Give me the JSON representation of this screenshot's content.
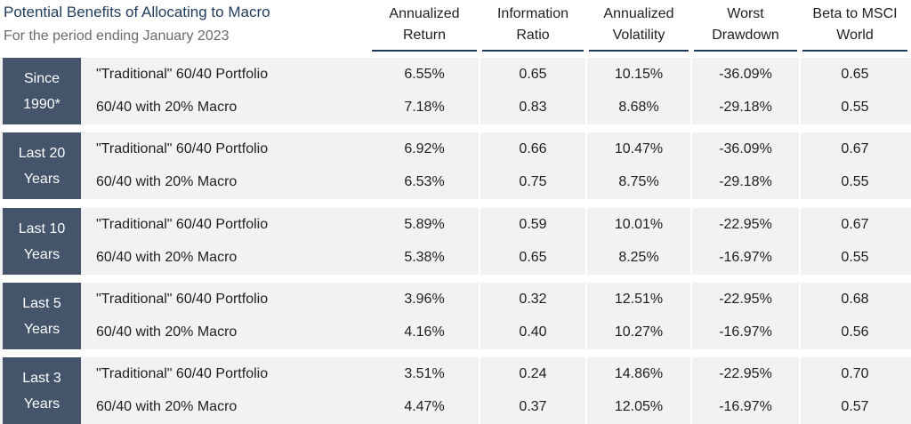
{
  "title": "Potential Benefits of Allocating to Macro",
  "subtitle": "For the period ending January 2023",
  "columns": [
    "Annualized\nReturn",
    "Information\nRatio",
    "Annualized\nVolatility",
    "Worst\nDrawdown",
    "Beta to MSCI\nWorld"
  ],
  "groups": [
    {
      "label": "Since\n1990*",
      "rows": [
        {
          "portfolio": "\"Traditional\" 60/40 Portfolio",
          "values": [
            "6.55%",
            "0.65",
            "10.15%",
            "-36.09%",
            "0.65"
          ]
        },
        {
          "portfolio": "60/40 with 20% Macro",
          "values": [
            "7.18%",
            "0.83",
            "8.68%",
            "-29.18%",
            "0.55"
          ]
        }
      ]
    },
    {
      "label": "Last 20\nYears",
      "rows": [
        {
          "portfolio": "\"Traditional\" 60/40 Portfolio",
          "values": [
            "6.92%",
            "0.66",
            "10.47%",
            "-36.09%",
            "0.67"
          ]
        },
        {
          "portfolio": "60/40 with 20% Macro",
          "values": [
            "6.53%",
            "0.75",
            "8.75%",
            "-29.18%",
            "0.55"
          ]
        }
      ]
    },
    {
      "label": "Last 10\nYears",
      "rows": [
        {
          "portfolio": "\"Traditional\" 60/40 Portfolio",
          "values": [
            "5.89%",
            "0.59",
            "10.01%",
            "-22.95%",
            "0.67"
          ]
        },
        {
          "portfolio": "60/40 with 20% Macro",
          "values": [
            "5.38%",
            "0.65",
            "8.25%",
            "-16.97%",
            "0.55"
          ]
        }
      ]
    },
    {
      "label": "Last 5\nYears",
      "rows": [
        {
          "portfolio": "\"Traditional\" 60/40 Portfolio",
          "values": [
            "3.96%",
            "0.32",
            "12.51%",
            "-22.95%",
            "0.68"
          ]
        },
        {
          "portfolio": "60/40 with 20% Macro",
          "values": [
            "4.16%",
            "0.40",
            "10.27%",
            "-16.97%",
            "0.56"
          ]
        }
      ]
    },
    {
      "label": "Last 3\nYears",
      "rows": [
        {
          "portfolio": "\"Traditional\" 60/40 Portfolio",
          "values": [
            "3.51%",
            "0.24",
            "14.86%",
            "-22.95%",
            "0.70"
          ]
        },
        {
          "portfolio": "60/40 with 20% Macro",
          "values": [
            "4.47%",
            "0.37",
            "12.05%",
            "-16.97%",
            "0.57"
          ]
        }
      ]
    }
  ],
  "colors": {
    "label_bg": "#44546a",
    "band_bg": "#f2f2f2",
    "header_rule": "#1f3b5c",
    "title": "#1f3b5c"
  }
}
